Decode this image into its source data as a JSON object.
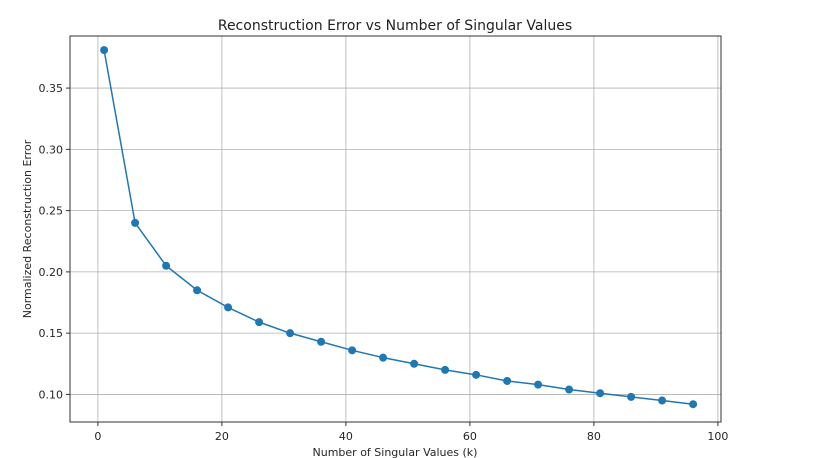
{
  "chart_data": {
    "type": "line",
    "title": "Reconstruction Error vs Number of Singular Values",
    "xlabel": "Number of Singular Values (k)",
    "ylabel": "Normalized Reconstruction Error",
    "xlim": [
      -4.5,
      100.5
    ],
    "ylim": [
      0.0775,
      0.3925
    ],
    "x_ticks": [
      0,
      20,
      40,
      60,
      80,
      100
    ],
    "y_ticks": [
      0.1,
      0.15,
      0.2,
      0.25,
      0.3,
      0.35
    ],
    "x_tick_labels": [
      "0",
      "20",
      "40",
      "60",
      "80",
      "100"
    ],
    "y_tick_labels": [
      "0.10",
      "0.15",
      "0.20",
      "0.25",
      "0.30",
      "0.35"
    ],
    "grid": true,
    "marker": "circle",
    "series": [
      {
        "color": "#1f77b4",
        "x": [
          1,
          6,
          11,
          16,
          21,
          26,
          31,
          36,
          41,
          46,
          51,
          56,
          61,
          66,
          71,
          76,
          81,
          86,
          91,
          96
        ],
        "y": [
          0.381,
          0.24,
          0.205,
          0.185,
          0.171,
          0.159,
          0.15,
          0.143,
          0.136,
          0.13,
          0.125,
          0.12,
          0.116,
          0.111,
          0.108,
          0.104,
          0.101,
          0.098,
          0.095,
          0.092
        ]
      }
    ]
  }
}
